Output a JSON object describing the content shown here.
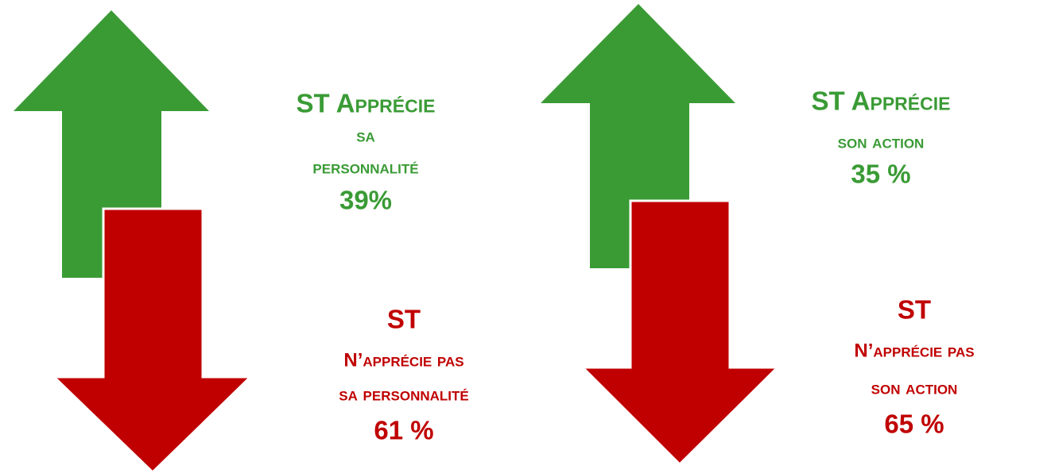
{
  "panels": [
    {
      "up": {
        "lines": [
          "ST Apprécie",
          "sa",
          "personnalité",
          "39%"
        ]
      },
      "down": {
        "lines": [
          "ST",
          "N’apprécie pas",
          "sa personnalité",
          "61 %"
        ]
      }
    },
    {
      "up": {
        "lines": [
          "ST Apprécie",
          "son action",
          "35 %"
        ]
      },
      "down": {
        "lines": [
          "ST",
          "N’apprécie pas",
          "son action",
          "65 %"
        ]
      }
    }
  ]
}
